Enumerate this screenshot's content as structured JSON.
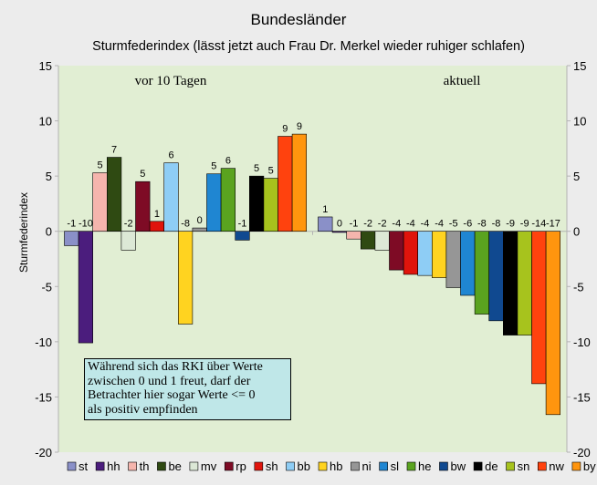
{
  "chart_data": {
    "type": "bar",
    "title": "Bundesländer",
    "subtitle": "Sturmfederindex (lässt jetzt auch Frau Dr. Merkel wieder ruhiger schlafen)",
    "ylabel": "Sturmfederindex",
    "ylim": [
      -20,
      15
    ],
    "yticks": [
      -20,
      -15,
      -10,
      -5,
      0,
      5,
      10,
      15
    ],
    "grid": false,
    "legend_position": "bottom",
    "groups": [
      {
        "label": "vor 10 Tagen",
        "bars": [
          {
            "cat": "st",
            "value": -1.3,
            "label": "-1"
          },
          {
            "cat": "hh",
            "value": -10.1,
            "label": "-10"
          },
          {
            "cat": "th",
            "value": 5.3,
            "label": "5"
          },
          {
            "cat": "be",
            "value": 6.7,
            "label": "7"
          },
          {
            "cat": "mv",
            "value": -1.7,
            "label": "-2"
          },
          {
            "cat": "rp",
            "value": 4.5,
            "label": "5"
          },
          {
            "cat": "sh",
            "value": 0.9,
            "label": "1"
          },
          {
            "cat": "bb",
            "value": 6.2,
            "label": "6"
          },
          {
            "cat": "hb",
            "value": -8.4,
            "label": "-8"
          },
          {
            "cat": "ni",
            "value": 0.3,
            "label": "0"
          },
          {
            "cat": "sl",
            "value": 5.2,
            "label": "5"
          },
          {
            "cat": "he",
            "value": 5.7,
            "label": "6"
          },
          {
            "cat": "bw",
            "value": -0.8,
            "label": "-1"
          },
          {
            "cat": "de",
            "value": 5.0,
            "label": "5"
          },
          {
            "cat": "sn",
            "value": 4.8,
            "label": "5"
          },
          {
            "cat": "nw",
            "value": 8.6,
            "label": "9"
          },
          {
            "cat": "by",
            "value": 8.8,
            "label": "9"
          }
        ]
      },
      {
        "label": "aktuell",
        "bars": [
          {
            "cat": "st",
            "value": 1.3,
            "label": "1"
          },
          {
            "cat": "hh",
            "value": -0.1,
            "label": "0"
          },
          {
            "cat": "th",
            "value": -0.7,
            "label": "-1"
          },
          {
            "cat": "be",
            "value": -1.6,
            "label": "-2"
          },
          {
            "cat": "mv",
            "value": -1.7,
            "label": "-2"
          },
          {
            "cat": "rp",
            "value": -3.5,
            "label": "-4"
          },
          {
            "cat": "sh",
            "value": -3.9,
            "label": "-4"
          },
          {
            "cat": "bb",
            "value": -4.0,
            "label": "-4"
          },
          {
            "cat": "hb",
            "value": -4.2,
            "label": "-4"
          },
          {
            "cat": "ni",
            "value": -5.1,
            "label": "-5"
          },
          {
            "cat": "sl",
            "value": -5.8,
            "label": "-6"
          },
          {
            "cat": "he",
            "value": -7.5,
            "label": "-8"
          },
          {
            "cat": "bw",
            "value": -8.1,
            "label": "-8"
          },
          {
            "cat": "de",
            "value": -9.4,
            "label": "-9"
          },
          {
            "cat": "sn",
            "value": -9.4,
            "label": "-9"
          },
          {
            "cat": "nw",
            "value": -13.8,
            "label": "-14"
          },
          {
            "cat": "by",
            "value": -16.6,
            "label": "-17"
          }
        ]
      }
    ],
    "legend": [
      {
        "cat": "st",
        "color": "#8a90c8"
      },
      {
        "cat": "hh",
        "color": "#4b1d7d"
      },
      {
        "cat": "th",
        "color": "#f5b5ad"
      },
      {
        "cat": "be",
        "color": "#2f4a12"
      },
      {
        "cat": "mv",
        "color": "#dce8d6"
      },
      {
        "cat": "rp",
        "color": "#7e0b25"
      },
      {
        "cat": "sh",
        "color": "#e0140c"
      },
      {
        "cat": "bb",
        "color": "#8ecdf5"
      },
      {
        "cat": "hb",
        "color": "#ffd320"
      },
      {
        "cat": "ni",
        "color": "#969696"
      },
      {
        "cat": "sl",
        "color": "#1f86d2"
      },
      {
        "cat": "he",
        "color": "#5aa31f"
      },
      {
        "cat": "bw",
        "color": "#104990"
      },
      {
        "cat": "de",
        "color": "#000000"
      },
      {
        "cat": "sn",
        "color": "#a7c31d"
      },
      {
        "cat": "nw",
        "color": "#ff420e"
      },
      {
        "cat": "by",
        "color": "#ff950e"
      }
    ],
    "annotation": [
      "Während sich das RKI über Werte",
      "zwischen 0 und 1 freut, darf der",
      "Betrachter hier sogar Werte <= 0",
      "als positiv empfinden"
    ],
    "colors": {
      "plot_background": "#e1eed3",
      "page_background": "#ececec",
      "annotation_background": "#bfe7e8"
    }
  }
}
